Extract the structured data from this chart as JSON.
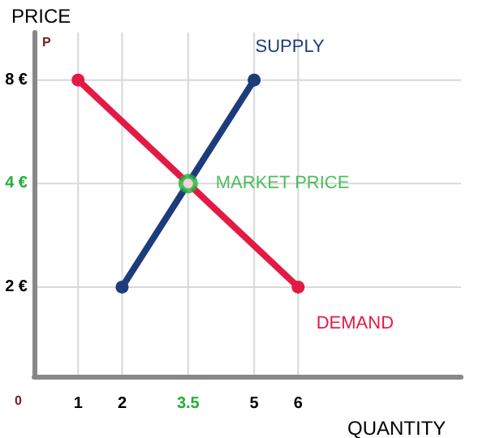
{
  "chart_data": {
    "type": "line",
    "xlabel": "QUANTITY",
    "ylabel": "PRICE",
    "annotations": [
      "P",
      "0"
    ],
    "series": [
      {
        "name": "SUPPLY",
        "color": "#1c3c7c",
        "x": [
          2,
          5
        ],
        "values": [
          2,
          8
        ]
      },
      {
        "name": "DEMAND",
        "color": "#e31b44",
        "x": [
          1,
          6
        ],
        "values": [
          8,
          2
        ]
      },
      {
        "name": "MARKET PRICE",
        "type": "scatter",
        "color": "#22b036",
        "x": [
          3.5
        ],
        "values": [
          4
        ]
      }
    ],
    "xlim": [
      0,
      9.7
    ],
    "xticks": [
      1,
      2,
      3.5,
      5,
      6
    ],
    "ylim": [
      1.1,
      11
    ],
    "yticks": [
      {
        "value": 2,
        "label": "2 €"
      },
      {
        "value": 4,
        "label": "4 €"
      },
      {
        "value": 8,
        "label": "8 €"
      }
    ],
    "log": "y",
    "grid": true,
    "legend": false,
    "marker": "circle",
    "line_style": "solid"
  }
}
